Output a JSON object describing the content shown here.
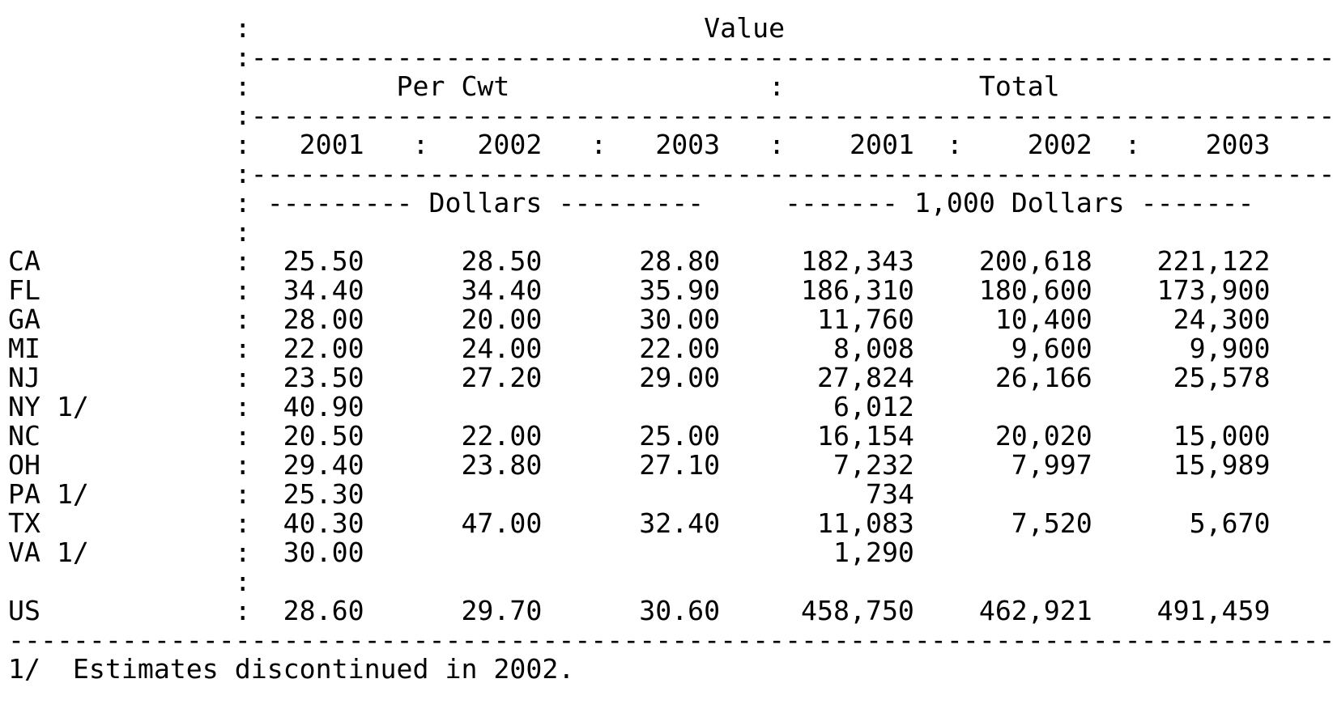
{
  "document": {
    "title": "Value",
    "column_groups": [
      {
        "label": "Per Cwt",
        "unit": "Dollars"
      },
      {
        "label": "Total",
        "unit": "1,000 Dollars"
      }
    ],
    "years": [
      "2001",
      "2002",
      "2003"
    ],
    "rows": [
      {
        "state": "CA",
        "per_cwt": [
          "25.50",
          "28.50",
          "28.80"
        ],
        "total": [
          "182,343",
          "200,618",
          "221,122"
        ]
      },
      {
        "state": "FL",
        "per_cwt": [
          "34.40",
          "34.40",
          "35.90"
        ],
        "total": [
          "186,310",
          "180,600",
          "173,900"
        ]
      },
      {
        "state": "GA",
        "per_cwt": [
          "28.00",
          "20.00",
          "30.00"
        ],
        "total": [
          "11,760",
          "10,400",
          "24,300"
        ]
      },
      {
        "state": "MI",
        "per_cwt": [
          "22.00",
          "24.00",
          "22.00"
        ],
        "total": [
          "8,008",
          "9,600",
          "9,900"
        ]
      },
      {
        "state": "NJ",
        "per_cwt": [
          "23.50",
          "27.20",
          "29.00"
        ],
        "total": [
          "27,824",
          "26,166",
          "25,578"
        ]
      },
      {
        "state": "NY 1/",
        "per_cwt": [
          "40.90",
          "",
          ""
        ],
        "total": [
          "6,012",
          "",
          ""
        ]
      },
      {
        "state": "NC",
        "per_cwt": [
          "20.50",
          "22.00",
          "25.00"
        ],
        "total": [
          "16,154",
          "20,020",
          "15,000"
        ]
      },
      {
        "state": "OH",
        "per_cwt": [
          "29.40",
          "23.80",
          "27.10"
        ],
        "total": [
          "7,232",
          "7,997",
          "15,989"
        ]
      },
      {
        "state": "PA 1/",
        "per_cwt": [
          "25.30",
          "",
          ""
        ],
        "total": [
          "734",
          "",
          ""
        ]
      },
      {
        "state": "TX",
        "per_cwt": [
          "40.30",
          "47.00",
          "32.40"
        ],
        "total": [
          "11,083",
          "7,520",
          "5,670"
        ]
      },
      {
        "state": "VA 1/",
        "per_cwt": [
          "30.00",
          "",
          ""
        ],
        "total": [
          "1,290",
          "",
          ""
        ]
      }
    ],
    "us_row": {
      "state": "US",
      "per_cwt": [
        "28.60",
        "29.70",
        "30.60"
      ],
      "total": [
        "458,750",
        "462,921",
        "491,459"
      ]
    },
    "footnote": "1/  Estimates discontinued in 2002."
  }
}
